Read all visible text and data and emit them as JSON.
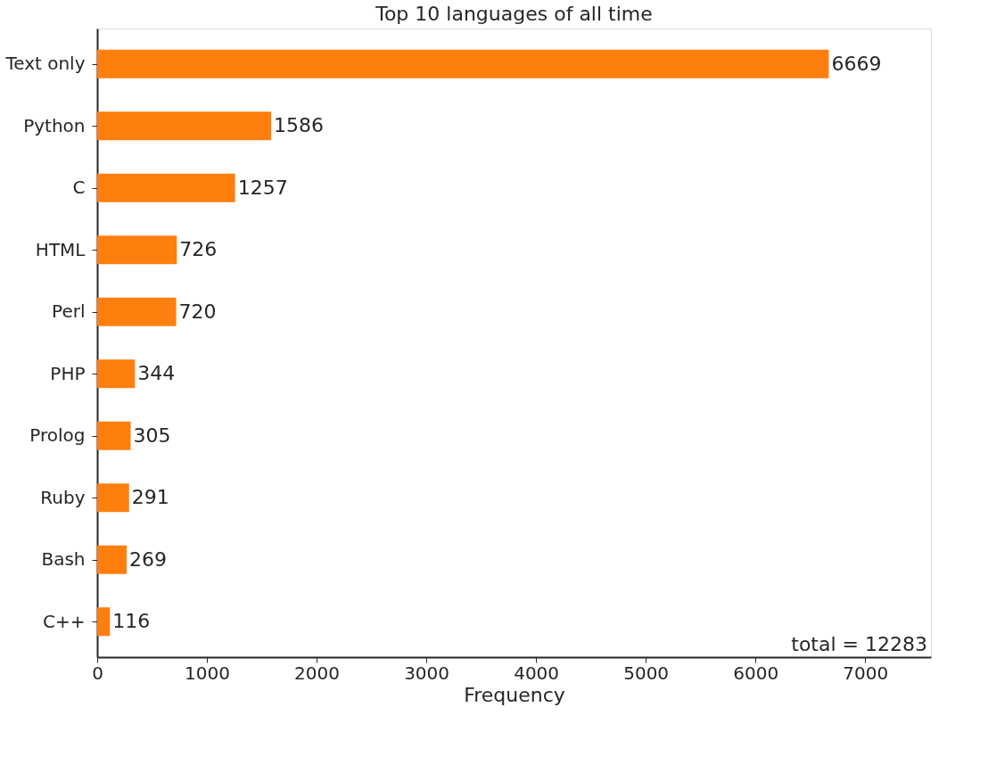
{
  "chart_data": {
    "type": "bar",
    "orientation": "horizontal",
    "title": "Top 10 languages of all time",
    "xlabel": "Frequency",
    "categories": [
      "Text only",
      "Python",
      "C",
      "HTML",
      "Perl",
      "PHP",
      "Prolog",
      "Ruby",
      "Bash",
      "C++"
    ],
    "values": [
      6669,
      1586,
      1257,
      726,
      720,
      344,
      305,
      291,
      269,
      116
    ],
    "color": "#ff7f0e",
    "data_labels": true,
    "xlim": [
      0,
      7600
    ],
    "xticks": [
      0,
      1000,
      2000,
      3000,
      4000,
      5000,
      6000,
      7000
    ],
    "annotations": [
      "total = 12283"
    ],
    "grid": false
  }
}
